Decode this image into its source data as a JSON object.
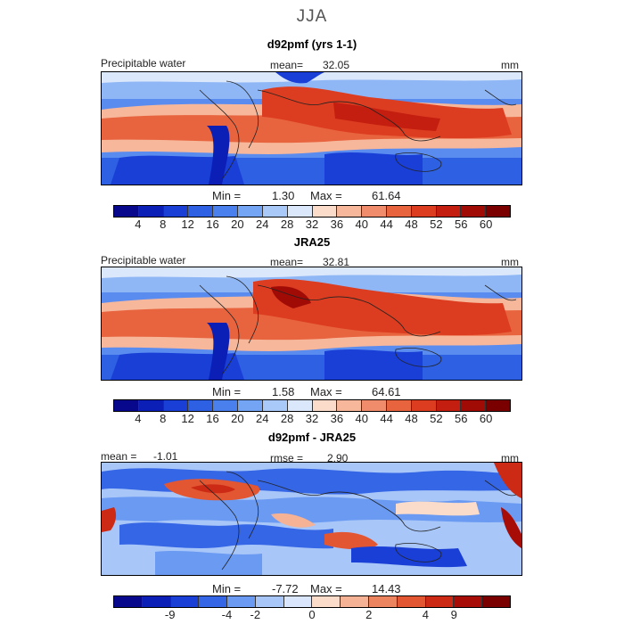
{
  "title": "JJA",
  "colors": {
    "abs_palette": [
      "#08088c",
      "#0b1fb6",
      "#1a3fd6",
      "#2e60e4",
      "#4a80ee",
      "#74a4f4",
      "#a9c9f8",
      "#dbe7fb",
      "#fbdccb",
      "#f6b79b",
      "#f08c6c",
      "#e8643f",
      "#dc3d20",
      "#c41e10",
      "#a10b06",
      "#7a0000"
    ],
    "diff_palette": [
      "#08088c",
      "#0b1fb6",
      "#1a3fd6",
      "#3566e6",
      "#6a9af2",
      "#a8c6f8",
      "#d9e6fb",
      "#fbdccb",
      "#f5b294",
      "#ed8460",
      "#e25632",
      "#cc2a14",
      "#a80c06",
      "#7a0000"
    ]
  },
  "panels": [
    {
      "title": "d92pmf (yrs 1-1)",
      "left_label": "Precipitable water",
      "stat_label": "mean=",
      "stat_value": "32.05",
      "units": "mm",
      "min_label": "Min =",
      "min_value": "1.30",
      "max_label": "Max =",
      "max_value": "61.64",
      "ticks": [
        "4",
        "8",
        "12",
        "16",
        "20",
        "24",
        "28",
        "32",
        "36",
        "40",
        "44",
        "48",
        "52",
        "56",
        "60"
      ]
    },
    {
      "title": "JRA25",
      "left_label": "Precipitable water",
      "stat_label": "mean=",
      "stat_value": "32.81",
      "units": "mm",
      "min_label": "Min =",
      "min_value": "1.58",
      "max_label": "Max =",
      "max_value": "64.61",
      "ticks": [
        "4",
        "8",
        "12",
        "16",
        "20",
        "24",
        "28",
        "32",
        "36",
        "40",
        "44",
        "48",
        "52",
        "56",
        "60"
      ]
    },
    {
      "title": "d92pmf - JRA25",
      "left_label": "mean =",
      "left_value": "-1.01",
      "stat_label": "rmse =",
      "stat_value": "2.90",
      "units": "mm",
      "min_label": "Min =",
      "min_value": "-7.72",
      "max_label": "Max =",
      "max_value": "14.43",
      "ticks": [
        "-9",
        "-4",
        "-2",
        "0",
        "2",
        "4",
        "9"
      ]
    }
  ]
}
